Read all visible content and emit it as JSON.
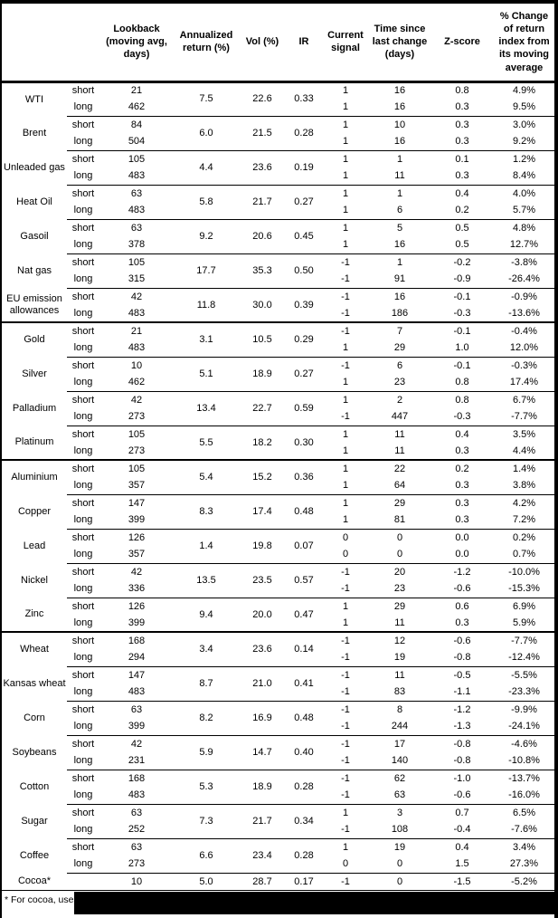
{
  "colors": {
    "text": "#000000",
    "border": "#000000",
    "background": "#ffffff",
    "redaction": "#000000"
  },
  "table": {
    "headers": [
      "",
      "",
      "Lookback (moving avg, days)",
      "Annualized return (%)",
      "Vol (%)",
      "IR",
      "Current signal",
      "Time since last change (days)",
      "Z-score",
      "% Change of return index from its moving average"
    ],
    "groups": [
      {
        "name": "WTI",
        "annualized_return": "7.5",
        "vol": "22.6",
        "ir": "0.33",
        "rows": [
          {
            "term": "short",
            "lookback": "21",
            "signal": "1",
            "time_since": "16",
            "z_score": "0.8",
            "pct_change": "4.9%"
          },
          {
            "term": "long",
            "lookback": "462",
            "signal": "1",
            "time_since": "16",
            "z_score": "0.3",
            "pct_change": "9.5%"
          }
        ]
      },
      {
        "name": "Brent",
        "annualized_return": "6.0",
        "vol": "21.5",
        "ir": "0.28",
        "rows": [
          {
            "term": "short",
            "lookback": "84",
            "signal": "1",
            "time_since": "10",
            "z_score": "0.3",
            "pct_change": "3.0%"
          },
          {
            "term": "long",
            "lookback": "504",
            "signal": "1",
            "time_since": "16",
            "z_score": "0.3",
            "pct_change": "9.2%"
          }
        ]
      },
      {
        "name": "Unleaded gas",
        "annualized_return": "4.4",
        "vol": "23.6",
        "ir": "0.19",
        "rows": [
          {
            "term": "short",
            "lookback": "105",
            "signal": "1",
            "time_since": "1",
            "z_score": "0.1",
            "pct_change": "1.2%"
          },
          {
            "term": "long",
            "lookback": "483",
            "signal": "1",
            "time_since": "11",
            "z_score": "0.3",
            "pct_change": "8.4%"
          }
        ]
      },
      {
        "name": "Heat Oil",
        "annualized_return": "5.8",
        "vol": "21.7",
        "ir": "0.27",
        "rows": [
          {
            "term": "short",
            "lookback": "63",
            "signal": "1",
            "time_since": "1",
            "z_score": "0.4",
            "pct_change": "4.0%"
          },
          {
            "term": "long",
            "lookback": "483",
            "signal": "1",
            "time_since": "6",
            "z_score": "0.2",
            "pct_change": "5.7%"
          }
        ]
      },
      {
        "name": "Gasoil",
        "annualized_return": "9.2",
        "vol": "20.6",
        "ir": "0.45",
        "rows": [
          {
            "term": "short",
            "lookback": "63",
            "signal": "1",
            "time_since": "5",
            "z_score": "0.5",
            "pct_change": "4.8%"
          },
          {
            "term": "long",
            "lookback": "378",
            "signal": "1",
            "time_since": "16",
            "z_score": "0.5",
            "pct_change": "12.7%"
          }
        ]
      },
      {
        "name": "Nat gas",
        "annualized_return": "17.7",
        "vol": "35.3",
        "ir": "0.50",
        "rows": [
          {
            "term": "short",
            "lookback": "105",
            "signal": "-1",
            "time_since": "1",
            "z_score": "-0.2",
            "pct_change": "-3.8%"
          },
          {
            "term": "long",
            "lookback": "315",
            "signal": "-1",
            "time_since": "91",
            "z_score": "-0.9",
            "pct_change": "-26.4%"
          }
        ]
      },
      {
        "name": "EU emission allowances",
        "annualized_return": "11.8",
        "vol": "30.0",
        "ir": "0.39",
        "rows": [
          {
            "term": "short",
            "lookback": "42",
            "signal": "-1",
            "time_since": "16",
            "z_score": "-0.1",
            "pct_change": "-0.9%"
          },
          {
            "term": "long",
            "lookback": "483",
            "signal": "-1",
            "time_since": "186",
            "z_score": "-0.3",
            "pct_change": "-13.6%"
          }
        ]
      },
      {
        "name": "Gold",
        "section_break": true,
        "annualized_return": "3.1",
        "vol": "10.5",
        "ir": "0.29",
        "rows": [
          {
            "term": "short",
            "lookback": "21",
            "signal": "-1",
            "time_since": "7",
            "z_score": "-0.1",
            "pct_change": "-0.4%"
          },
          {
            "term": "long",
            "lookback": "483",
            "signal": "1",
            "time_since": "29",
            "z_score": "1.0",
            "pct_change": "12.0%"
          }
        ]
      },
      {
        "name": "Silver",
        "annualized_return": "5.1",
        "vol": "18.9",
        "ir": "0.27",
        "rows": [
          {
            "term": "short",
            "lookback": "10",
            "signal": "-1",
            "time_since": "6",
            "z_score": "-0.1",
            "pct_change": "-0.3%"
          },
          {
            "term": "long",
            "lookback": "462",
            "signal": "1",
            "time_since": "23",
            "z_score": "0.8",
            "pct_change": "17.4%"
          }
        ]
      },
      {
        "name": "Palladium",
        "annualized_return": "13.4",
        "vol": "22.7",
        "ir": "0.59",
        "rows": [
          {
            "term": "short",
            "lookback": "42",
            "signal": "1",
            "time_since": "2",
            "z_score": "0.8",
            "pct_change": "6.7%"
          },
          {
            "term": "long",
            "lookback": "273",
            "signal": "-1",
            "time_since": "447",
            "z_score": "-0.3",
            "pct_change": "-7.7%"
          }
        ]
      },
      {
        "name": "Platinum",
        "annualized_return": "5.5",
        "vol": "18.2",
        "ir": "0.30",
        "rows": [
          {
            "term": "short",
            "lookback": "105",
            "signal": "1",
            "time_since": "11",
            "z_score": "0.4",
            "pct_change": "3.5%"
          },
          {
            "term": "long",
            "lookback": "273",
            "signal": "1",
            "time_since": "11",
            "z_score": "0.3",
            "pct_change": "4.4%"
          }
        ]
      },
      {
        "name": "Aluminium",
        "section_break": true,
        "annualized_return": "5.4",
        "vol": "15.2",
        "ir": "0.36",
        "rows": [
          {
            "term": "short",
            "lookback": "105",
            "signal": "1",
            "time_since": "22",
            "z_score": "0.2",
            "pct_change": "1.4%"
          },
          {
            "term": "long",
            "lookback": "357",
            "signal": "1",
            "time_since": "64",
            "z_score": "0.3",
            "pct_change": "3.8%"
          }
        ]
      },
      {
        "name": "Copper",
        "annualized_return": "8.3",
        "vol": "17.4",
        "ir": "0.48",
        "rows": [
          {
            "term": "short",
            "lookback": "147",
            "signal": "1",
            "time_since": "29",
            "z_score": "0.3",
            "pct_change": "4.2%"
          },
          {
            "term": "long",
            "lookback": "399",
            "signal": "1",
            "time_since": "81",
            "z_score": "0.3",
            "pct_change": "7.2%"
          }
        ]
      },
      {
        "name": "Lead",
        "annualized_return": "1.4",
        "vol": "19.8",
        "ir": "0.07",
        "rows": [
          {
            "term": "short",
            "lookback": "126",
            "signal": "0",
            "time_since": "0",
            "z_score": "0.0",
            "pct_change": "0.2%"
          },
          {
            "term": "long",
            "lookback": "357",
            "signal": "0",
            "time_since": "0",
            "z_score": "0.0",
            "pct_change": "0.7%"
          }
        ]
      },
      {
        "name": "Nickel",
        "annualized_return": "13.5",
        "vol": "23.5",
        "ir": "0.57",
        "rows": [
          {
            "term": "short",
            "lookback": "42",
            "signal": "-1",
            "time_since": "20",
            "z_score": "-1.2",
            "pct_change": "-10.0%"
          },
          {
            "term": "long",
            "lookback": "336",
            "signal": "-1",
            "time_since": "23",
            "z_score": "-0.6",
            "pct_change": "-15.3%"
          }
        ]
      },
      {
        "name": "Zinc",
        "annualized_return": "9.4",
        "vol": "20.0",
        "ir": "0.47",
        "rows": [
          {
            "term": "short",
            "lookback": "126",
            "signal": "1",
            "time_since": "29",
            "z_score": "0.6",
            "pct_change": "6.9%"
          },
          {
            "term": "long",
            "lookback": "399",
            "signal": "1",
            "time_since": "11",
            "z_score": "0.3",
            "pct_change": "5.9%"
          }
        ]
      },
      {
        "name": "Wheat",
        "section_break": true,
        "annualized_return": "3.4",
        "vol": "23.6",
        "ir": "0.14",
        "rows": [
          {
            "term": "short",
            "lookback": "168",
            "signal": "-1",
            "time_since": "12",
            "z_score": "-0.6",
            "pct_change": "-7.7%"
          },
          {
            "term": "long",
            "lookback": "294",
            "signal": "-1",
            "time_since": "19",
            "z_score": "-0.8",
            "pct_change": "-12.4%"
          }
        ]
      },
      {
        "name": "Kansas wheat",
        "annualized_return": "8.7",
        "vol": "21.0",
        "ir": "0.41",
        "rows": [
          {
            "term": "short",
            "lookback": "147",
            "signal": "-1",
            "time_since": "11",
            "z_score": "-0.5",
            "pct_change": "-5.5%"
          },
          {
            "term": "long",
            "lookback": "483",
            "signal": "-1",
            "time_since": "83",
            "z_score": "-1.1",
            "pct_change": "-23.3%"
          }
        ]
      },
      {
        "name": "Corn",
        "annualized_return": "8.2",
        "vol": "16.9",
        "ir": "0.48",
        "rows": [
          {
            "term": "short",
            "lookback": "63",
            "signal": "-1",
            "time_since": "8",
            "z_score": "-1.2",
            "pct_change": "-9.9%"
          },
          {
            "term": "long",
            "lookback": "399",
            "signal": "-1",
            "time_since": "244",
            "z_score": "-1.3",
            "pct_change": "-24.1%"
          }
        ]
      },
      {
        "name": "Soybeans",
        "annualized_return": "5.9",
        "vol": "14.7",
        "ir": "0.40",
        "rows": [
          {
            "term": "short",
            "lookback": "42",
            "signal": "-1",
            "time_since": "17",
            "z_score": "-0.8",
            "pct_change": "-4.6%"
          },
          {
            "term": "long",
            "lookback": "231",
            "signal": "-1",
            "time_since": "140",
            "z_score": "-0.8",
            "pct_change": "-10.8%"
          }
        ]
      },
      {
        "name": "Cotton",
        "annualized_return": "5.3",
        "vol": "18.9",
        "ir": "0.28",
        "rows": [
          {
            "term": "short",
            "lookback": "168",
            "signal": "-1",
            "time_since": "62",
            "z_score": "-1.0",
            "pct_change": "-13.7%"
          },
          {
            "term": "long",
            "lookback": "483",
            "signal": "-1",
            "time_since": "63",
            "z_score": "-0.6",
            "pct_change": "-16.0%"
          }
        ]
      },
      {
        "name": "Sugar",
        "annualized_return": "7.3",
        "vol": "21.7",
        "ir": "0.34",
        "rows": [
          {
            "term": "short",
            "lookback": "63",
            "signal": "1",
            "time_since": "3",
            "z_score": "0.7",
            "pct_change": "6.5%"
          },
          {
            "term": "long",
            "lookback": "252",
            "signal": "-1",
            "time_since": "108",
            "z_score": "-0.4",
            "pct_change": "-7.6%"
          }
        ]
      },
      {
        "name": "Coffee",
        "annualized_return": "6.6",
        "vol": "23.4",
        "ir": "0.28",
        "rows": [
          {
            "term": "short",
            "lookback": "63",
            "signal": "1",
            "time_since": "19",
            "z_score": "0.4",
            "pct_change": "3.4%"
          },
          {
            "term": "long",
            "lookback": "273",
            "signal": "0",
            "time_since": "0",
            "z_score": "1.5",
            "pct_change": "27.3%"
          }
        ]
      },
      {
        "name": "Cocoa*",
        "annualized_return": "5.0",
        "vol": "28.7",
        "ir": "0.17",
        "rows": [
          {
            "term": "",
            "lookback": "10",
            "signal": "-1",
            "time_since": "0",
            "z_score": "-1.5",
            "pct_change": "-5.2%"
          }
        ]
      }
    ],
    "footnote": "* For cocoa, uses"
  }
}
